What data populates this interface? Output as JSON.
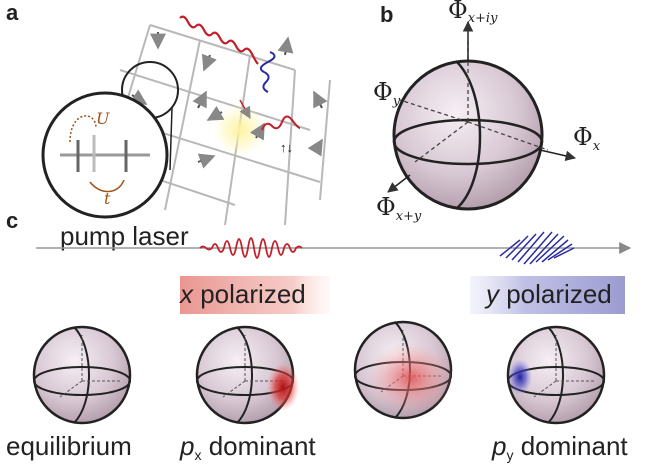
{
  "panel_labels": {
    "a": "a",
    "b": "b",
    "c": "c"
  },
  "panel_a": {
    "hopping_label": "t",
    "interaction_label": "U",
    "spin_pair": "↑↓"
  },
  "panel_b": {
    "axis_top": {
      "symbol": "Φ",
      "subscript": "x+iy"
    },
    "axis_left": {
      "symbol": "Φ",
      "subscript": "y"
    },
    "axis_right": {
      "symbol": "Φ",
      "subscript": "x"
    },
    "axis_bottom": {
      "symbol": "Φ",
      "subscript": "x+y"
    }
  },
  "panel_c": {
    "pump_label": "pump laser",
    "x_pol": {
      "var": "x",
      "text": " polarized",
      "color": "#e0473d"
    },
    "y_pol": {
      "var": "y",
      "text": " polarized",
      "color": "#4a4aa8"
    },
    "captions": {
      "c1": "equilibrium",
      "c2_var": "p",
      "c2_sub": "x",
      "c2_text": " dominant",
      "c4_var": "p",
      "c4_sub": "y",
      "c4_text": " dominant"
    }
  },
  "colors": {
    "sphere": "#c9b9c6",
    "red_wave": "#c0202a",
    "blue_wave": "#2a2aa0"
  }
}
